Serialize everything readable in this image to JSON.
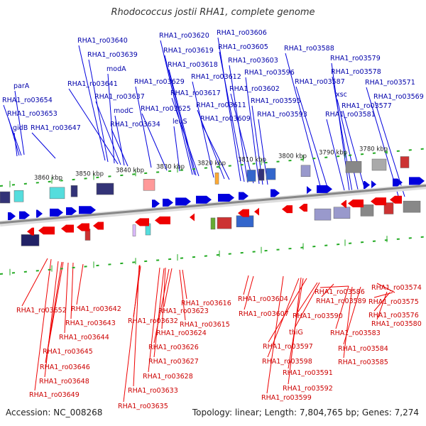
{
  "title": "Rhodococcus jostii RHA1, complete genome",
  "accession_text": "Accession: NC_008268",
  "summary_text": "Topology: linear; Length: 7,804,765 bp; Genes: 7,274",
  "colors": {
    "forward": "#0000dd",
    "reverse": "#ee0000",
    "forward_label": "#0000aa",
    "reverse_label": "#cc0000",
    "backbone": "#999999",
    "tick": "#22aa22"
  },
  "scale_labels": [
    "3860 kbp",
    "3850 kbp",
    "3840 kbp",
    "3830 kbp",
    "3820 kbp",
    "3810 kbp",
    "3800 kbp",
    "3790 kbp",
    "3780 kbp"
  ],
  "forward_genes": [
    "RHA1_ro03640",
    "RHA1_ro03639",
    "modA",
    "RHA1_ro03641",
    "RHA1_ro03637",
    "modC",
    "RHA1_ro03634",
    "RHA1_ro03629",
    "RHA1_ro03625",
    "leuS",
    "RHA1_ro03620",
    "RHA1_ro03619",
    "RHA1_ro03618",
    "RHA1_ro03617",
    "RHA1_ro03612",
    "RHA1_ro03611",
    "RHA1_ro03609",
    "RHA1_ro03606",
    "RHA1_ro03605",
    "RHA1_ro03603",
    "RHA1_ro03602",
    "RHA1_ro03596",
    "RHA1_ro03595",
    "RHA1_ro03593",
    "RHA1_ro03588",
    "RHA1_ro03587",
    "RHA1_ro03581",
    "RHA1_ro03579",
    "RHA1_ro03578",
    "xsc",
    "RHA1_ro03577",
    "RHA1_ro03571",
    "RHA1_ro03569",
    "parA",
    "RHA1_ro03654",
    "RHA1_ro03653",
    "gidB",
    "RHA1_ro03647"
  ],
  "reverse_genes": [
    "RHA1_ro03652",
    "RHA1_ro03642",
    "RHA1_ro03643",
    "RHA1_ro03644",
    "RHA1_ro03645",
    "RHA1_ro03646",
    "RHA1_ro03648",
    "RHA1_ro03649",
    "RHA1_ro03616",
    "RHA1_ro03623",
    "RHA1_ro03632",
    "RHA1_ro03624",
    "RHA1_ro03615",
    "RHA1_ro03626",
    "RHA1_ro03627",
    "RHA1_ro03628",
    "RHA1_ro03633",
    "RHA1_ro03635",
    "RHA1_ro03604",
    "RHA1_ro03607",
    "RHA1_ro03597",
    "RHA1_ro03598",
    "RHA1_ro03599",
    "RHA1_ro03592",
    "RHA1_ro03591",
    "thiG",
    "RHA1_ro03590",
    "RHA1_ro03589",
    "RHA1_ro03586",
    "RHA1_ro03583",
    "RHA1_ro03584",
    "RHA1_ro03585",
    "RHA1_ro03574",
    "RHA1_ro03575",
    "RHA1_ro03576",
    "RHA1_ro03580"
  ]
}
